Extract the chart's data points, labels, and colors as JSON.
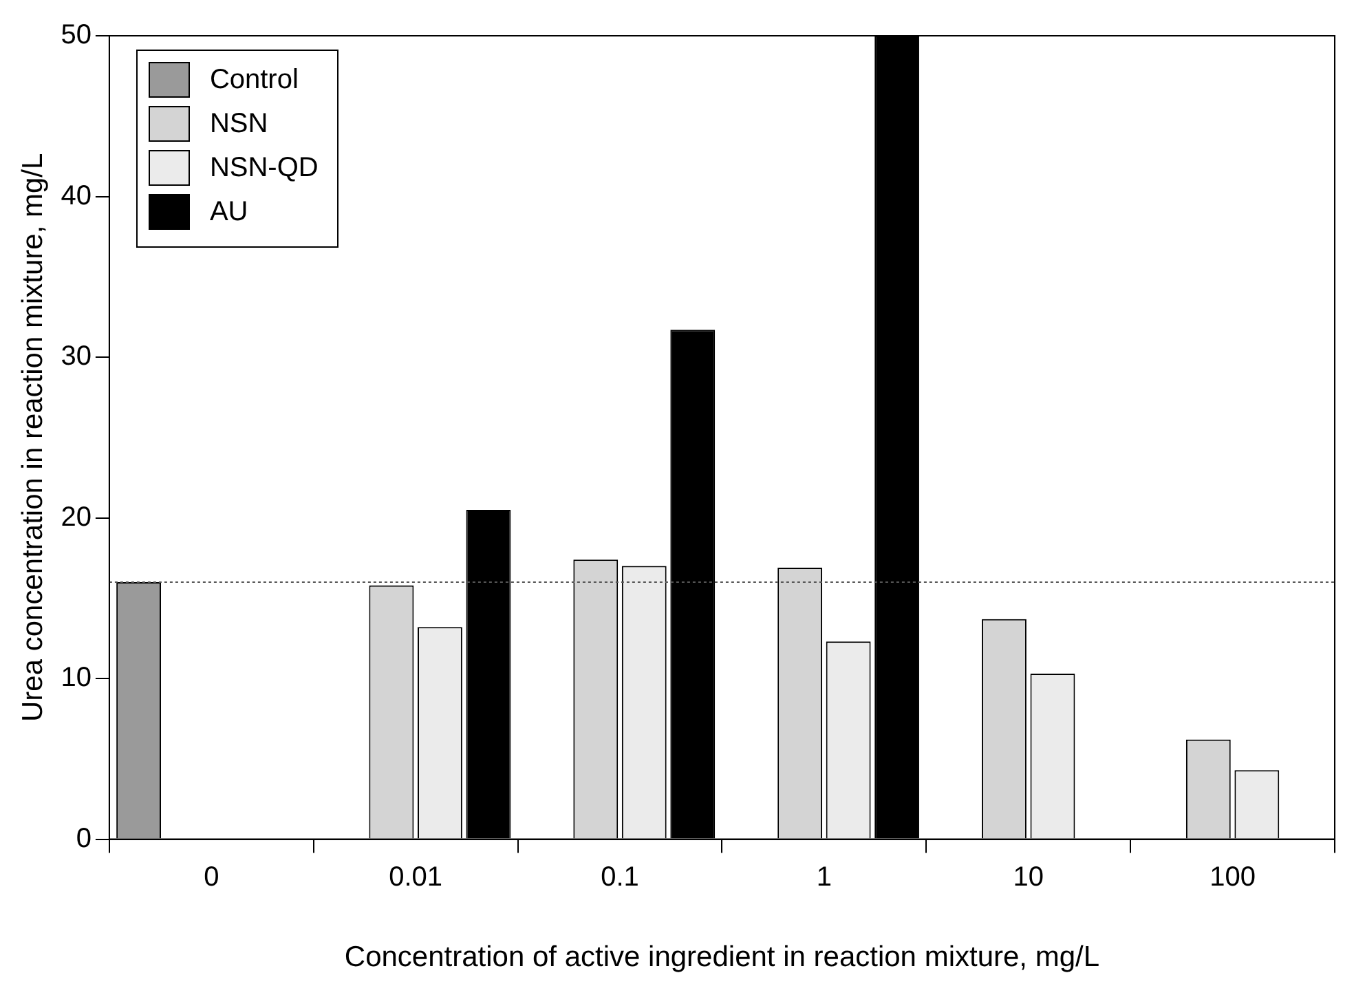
{
  "chart_data": {
    "type": "bar",
    "xlabel": "Concentration of active ingredient in reaction mixture, mg/L",
    "ylabel": "Urea concentration in reaction mixture, mg/L",
    "categories": [
      "0",
      "0.01",
      "0.1",
      "1",
      "10",
      "100"
    ],
    "series": [
      {
        "name": "Control",
        "color": "#9a9a9a",
        "values": [
          16.0,
          null,
          null,
          null,
          null,
          null
        ]
      },
      {
        "name": "NSN",
        "color": "#d4d4d4",
        "values": [
          null,
          15.8,
          17.4,
          16.9,
          13.7,
          6.2
        ]
      },
      {
        "name": "NSN-QD",
        "color": "#ebebeb",
        "values": [
          null,
          13.2,
          17.0,
          12.3,
          10.3,
          4.3
        ]
      },
      {
        "name": "AU",
        "color": "#000000",
        "values": [
          null,
          20.5,
          31.7,
          50,
          null,
          null
        ]
      }
    ],
    "ylim": [
      0,
      50
    ],
    "yticks": [
      0,
      10,
      20,
      30,
      40,
      50
    ],
    "grid": false,
    "legend": "top left",
    "ref_lines": [
      {
        "axis": "y",
        "value": 16,
        "line_style": "dotted",
        "color": "#555555"
      }
    ]
  }
}
